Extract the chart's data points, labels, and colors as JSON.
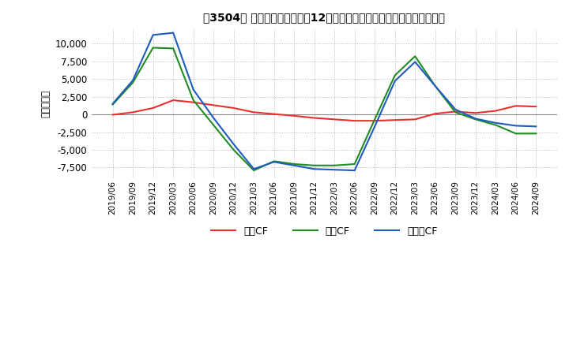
{
  "title": "【3504】 キャッシュフローの12か月移動合計の対前年同期増減額の推移",
  "ylabel": "（百万円）",
  "ylim": [
    -9000,
    12000
  ],
  "yticks": [
    -7500,
    -5000,
    -2500,
    0,
    2500,
    5000,
    7500,
    10000
  ],
  "x_labels": [
    "2019/06",
    "2019/09",
    "2019/12",
    "2020/03",
    "2020/06",
    "2020/09",
    "2020/12",
    "2021/03",
    "2021/06",
    "2021/09",
    "2021/12",
    "2022/03",
    "2022/06",
    "2022/09",
    "2022/12",
    "2023/03",
    "2023/06",
    "2023/09",
    "2023/12",
    "2024/03",
    "2024/06",
    "2024/09"
  ],
  "eigyo_cf": [
    -50,
    300,
    900,
    2000,
    1700,
    1300,
    900,
    300,
    50,
    -200,
    -500,
    -700,
    -900,
    -900,
    -800,
    -700,
    100,
    400,
    200,
    500,
    1200,
    1100
  ],
  "toushi_cf": [
    1400,
    4500,
    9400,
    9300,
    2000,
    -1500,
    -5000,
    -7900,
    -6600,
    -7000,
    -7200,
    -7200,
    -7000,
    -700,
    5500,
    8200,
    4000,
    300,
    -700,
    -1500,
    -2700,
    -2700
  ],
  "free_cf": [
    1500,
    4800,
    11200,
    11500,
    3500,
    -500,
    -4200,
    -7700,
    -6700,
    -7200,
    -7700,
    -7800,
    -7900,
    -1700,
    4700,
    7400,
    4000,
    700,
    -600,
    -1200,
    -1600,
    -1700
  ],
  "eigyo_color": "#e83030",
  "toushi_color": "#228B22",
  "free_color": "#1e5bbf",
  "legend_labels": [
    "営業CF",
    "投資CF",
    "フリーCF"
  ],
  "background_color": "#ffffff",
  "grid_color": "#aaaaaa",
  "grid_style": ":"
}
